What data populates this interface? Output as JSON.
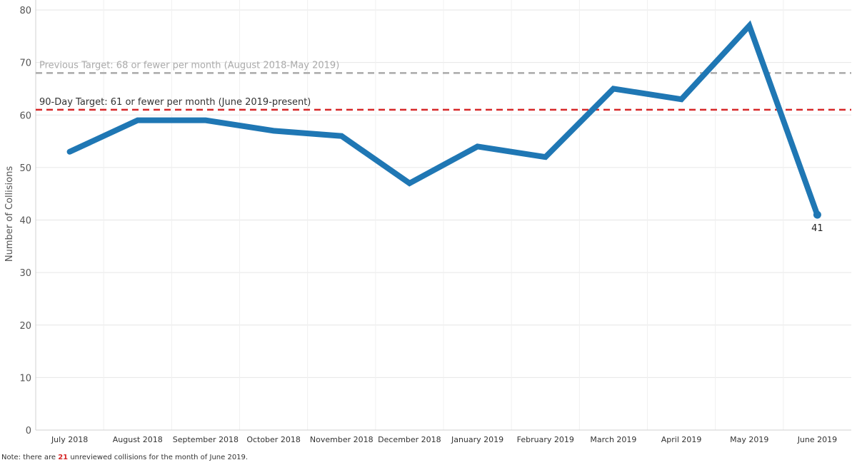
{
  "chart_data": {
    "type": "line",
    "categories": [
      "July 2018",
      "August 2018",
      "September 2018",
      "October 2018",
      "November 2018",
      "December 2018",
      "January 2019",
      "February 2019",
      "March 2019",
      "April 2019",
      "May 2019",
      "June 2019"
    ],
    "series": [
      {
        "values": [
          53,
          59,
          59,
          57,
          56,
          47,
          54,
          52,
          65,
          63,
          77,
          41
        ],
        "color": "#1f77b4"
      }
    ],
    "ylabel": "Number of Collisions",
    "ylim": [
      0,
      80
    ],
    "yticks": [
      0,
      10,
      20,
      30,
      40,
      50,
      60,
      70,
      80
    ],
    "grid": true,
    "reference_lines": [
      {
        "value": 68,
        "label": "Previous Target: 68 or fewer per month (August 2018-May 2019)",
        "color": "#aaaaaa",
        "label_color": "#aaaaaa",
        "style": "dashed"
      },
      {
        "value": 61,
        "label": "90-Day Target: 61 or fewer per month (June 2019-present)",
        "color": "#d62728",
        "label_color": "#333333",
        "style": "dashed"
      }
    ],
    "data_labels": [
      {
        "category": "June 2019",
        "value": 41,
        "text": "41"
      }
    ]
  },
  "note": {
    "prefix": "Note: there are ",
    "highlight": "21",
    "suffix": " unreviewed collisions for the month of June 2019."
  },
  "colors": {
    "highlight": "#d62728",
    "grid": "#e6e6e6"
  }
}
